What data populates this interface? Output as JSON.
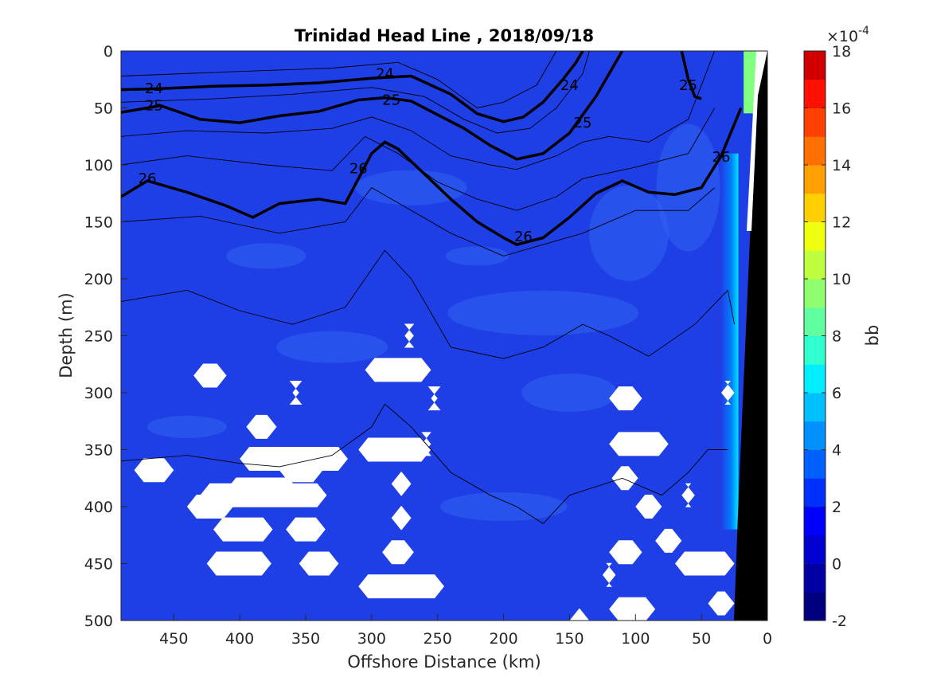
{
  "chart_data": {
    "type": "contour",
    "title": "Trinidad Head Line , 2018/09/18",
    "xlabel": "Offshore Distance (km)",
    "ylabel": "Depth (m)",
    "xlim": [
      490,
      0
    ],
    "x_reversed": true,
    "ylim": [
      0,
      500
    ],
    "y_reversed": true,
    "x_ticks": [
      "450",
      "400",
      "350",
      "300",
      "250",
      "200",
      "150",
      "100",
      "50",
      "0"
    ],
    "y_ticks": [
      "0",
      "50",
      "100",
      "150",
      "200",
      "250",
      "300",
      "350",
      "400",
      "450",
      "500"
    ],
    "colorbar": {
      "label": "bb",
      "exponent_label": "×10",
      "exponent_power": "-4",
      "range": [
        -2,
        18
      ],
      "ticks": [
        "18",
        "16",
        "14",
        "12",
        "10",
        "8",
        "6",
        "4",
        "2",
        "0",
        "-2"
      ],
      "levels": 20,
      "colormap": [
        "#00007f",
        "#0000b2",
        "#0000e6",
        "#0019ff",
        "#004dff",
        "#0080ff",
        "#00b2ff",
        "#00e6ff",
        "#1aff e5",
        "#4dffb2",
        "#80ff80",
        "#b2ff4d",
        "#e5ff1a",
        "#ffe600",
        "#ffb300",
        "#ff8000",
        "#ff4d00",
        "#ff1a00",
        "#e60000",
        "#b20000"
      ]
    },
    "field_description_colors": {
      "background": "#1f3fe6",
      "lighter_patch": "#2f62f0",
      "nearshore_high": "#00e6ff",
      "missing": "#ffffff",
      "bathymetry": "#000000"
    },
    "density_contours": [
      {
        "level": "24",
        "labels": [
          [
            465,
            33
          ],
          [
            290,
            20
          ],
          [
            150,
            30
          ]
        ],
        "x": [
          490,
          460,
          420,
          380,
          340,
          300,
          270,
          240,
          220,
          200,
          185,
          170,
          155,
          145,
          140
        ],
        "y": [
          34,
          33,
          31,
          30,
          28,
          24,
          22,
          38,
          55,
          62,
          58,
          45,
          25,
          10,
          0
        ]
      },
      {
        "level": "25",
        "labels": [
          [
            465,
            48
          ],
          [
            285,
            43
          ],
          [
            140,
            63
          ],
          [
            60,
            30
          ]
        ],
        "x": [
          490,
          460,
          430,
          400,
          370,
          340,
          310,
          290,
          270,
          250,
          230,
          210,
          190,
          170,
          150,
          130,
          110
        ],
        "y": [
          54,
          48,
          60,
          63,
          57,
          53,
          43,
          41,
          44,
          56,
          68,
          83,
          95,
          90,
          72,
          40,
          0
        ]
      },
      {
        "level": "25",
        "labels": [],
        "x": [
          65,
          60,
          55,
          50
        ],
        "y": [
          0,
          25,
          40,
          42
        ]
      },
      {
        "level": "26",
        "labels": [
          [
            470,
            112
          ],
          [
            310,
            103
          ],
          [
            185,
            163
          ],
          [
            35,
            93
          ]
        ],
        "x": [
          490,
          470,
          440,
          410,
          390,
          370,
          340,
          320,
          300,
          290,
          280,
          260,
          240,
          220,
          200,
          190,
          170,
          150,
          130,
          110,
          90,
          70,
          50,
          35,
          20
        ],
        "y": [
          128,
          114,
          124,
          136,
          146,
          134,
          130,
          134,
          90,
          80,
          86,
          108,
          130,
          150,
          164,
          170,
          164,
          146,
          125,
          114,
          124,
          126,
          120,
          92,
          50
        ]
      }
    ],
    "missing_data_hexagons": [
      {
        "x": [
          410,
          435
        ],
        "y": 285
      },
      {
        "x": [
          355,
          360
        ],
        "y": 300
      },
      {
        "x": [
          395,
          372
        ],
        "y": 330
      },
      {
        "x": [
          400,
          318
        ],
        "y": 358
      },
      {
        "x": [
          480,
          450
        ],
        "y": 368
      },
      {
        "x": [
          370,
          337
        ],
        "y": 368
      },
      {
        "x": [
          410,
          356
        ],
        "y": 385
      },
      {
        "x": [
          430,
          334
        ],
        "y": 390
      },
      {
        "x": [
          440,
          405
        ],
        "y": 400
      },
      {
        "x": [
          420,
          375
        ],
        "y": 420
      },
      {
        "x": [
          365,
          335
        ],
        "y": 420
      },
      {
        "x": [
          425,
          376
        ],
        "y": 450
      },
      {
        "x": [
          355,
          325
        ],
        "y": 450
      },
      {
        "x": [
          275,
          268
        ],
        "y": 250
      },
      {
        "x": [
          305,
          255
        ],
        "y": 280
      },
      {
        "x": [
          255,
          250
        ],
        "y": 305
      },
      {
        "x": [
          310,
          255
        ],
        "y": 350
      },
      {
        "x": [
          262,
          255
        ],
        "y": 345
      },
      {
        "x": [
          285,
          270
        ],
        "y": 380
      },
      {
        "x": [
          285,
          270
        ],
        "y": 410
      },
      {
        "x": [
          292,
          268
        ],
        "y": 440
      },
      {
        "x": [
          310,
          245
        ],
        "y": 470
      },
      {
        "x": [
          120,
          95
        ],
        "y": 305
      },
      {
        "x": [
          120,
          75
        ],
        "y": 345
      },
      {
        "x": [
          118,
          98
        ],
        "y": 375
      },
      {
        "x": [
          100,
          80
        ],
        "y": 400
      },
      {
        "x": [
          65,
          55
        ],
        "y": 390
      },
      {
        "x": [
          85,
          65
        ],
        "y": 430
      },
      {
        "x": [
          120,
          95
        ],
        "y": 440
      },
      {
        "x": [
          125,
          115
        ],
        "y": 460
      },
      {
        "x": [
          70,
          25
        ],
        "y": 450
      },
      {
        "x": [
          45,
          25
        ],
        "y": 485
      },
      {
        "x": [
          120,
          85
        ],
        "y": 490
      },
      {
        "x": [
          150,
          135
        ],
        "y": 500
      },
      {
        "x": [
          35,
          25
        ],
        "y": 300
      }
    ]
  }
}
